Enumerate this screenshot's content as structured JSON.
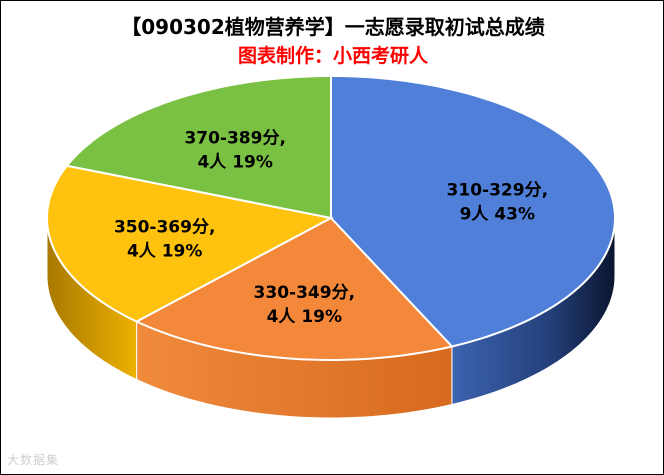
{
  "chart_data": {
    "type": "pie",
    "title": "【090302植物营养学】一志愿录取初试总成绩",
    "subtitle": "图表制作：小西考研人",
    "slices": [
      {
        "label": "310-329分,",
        "count_text": "9人 43%",
        "value": 43,
        "count": 9,
        "color": "#4f7fd9"
      },
      {
        "label": "330-349分,",
        "count_text": "4人 19%",
        "value": 19,
        "count": 4,
        "color": "#f4883a"
      },
      {
        "label": "350-369分,",
        "count_text": "4人 19%",
        "value": 19,
        "count": 4,
        "color": "#ffc20e"
      },
      {
        "label": "370-389分,",
        "count_text": "4人 19%",
        "value": 19,
        "count": 4,
        "color": "#7ac143"
      }
    ],
    "legend": "none"
  },
  "watermark": "大数据集"
}
